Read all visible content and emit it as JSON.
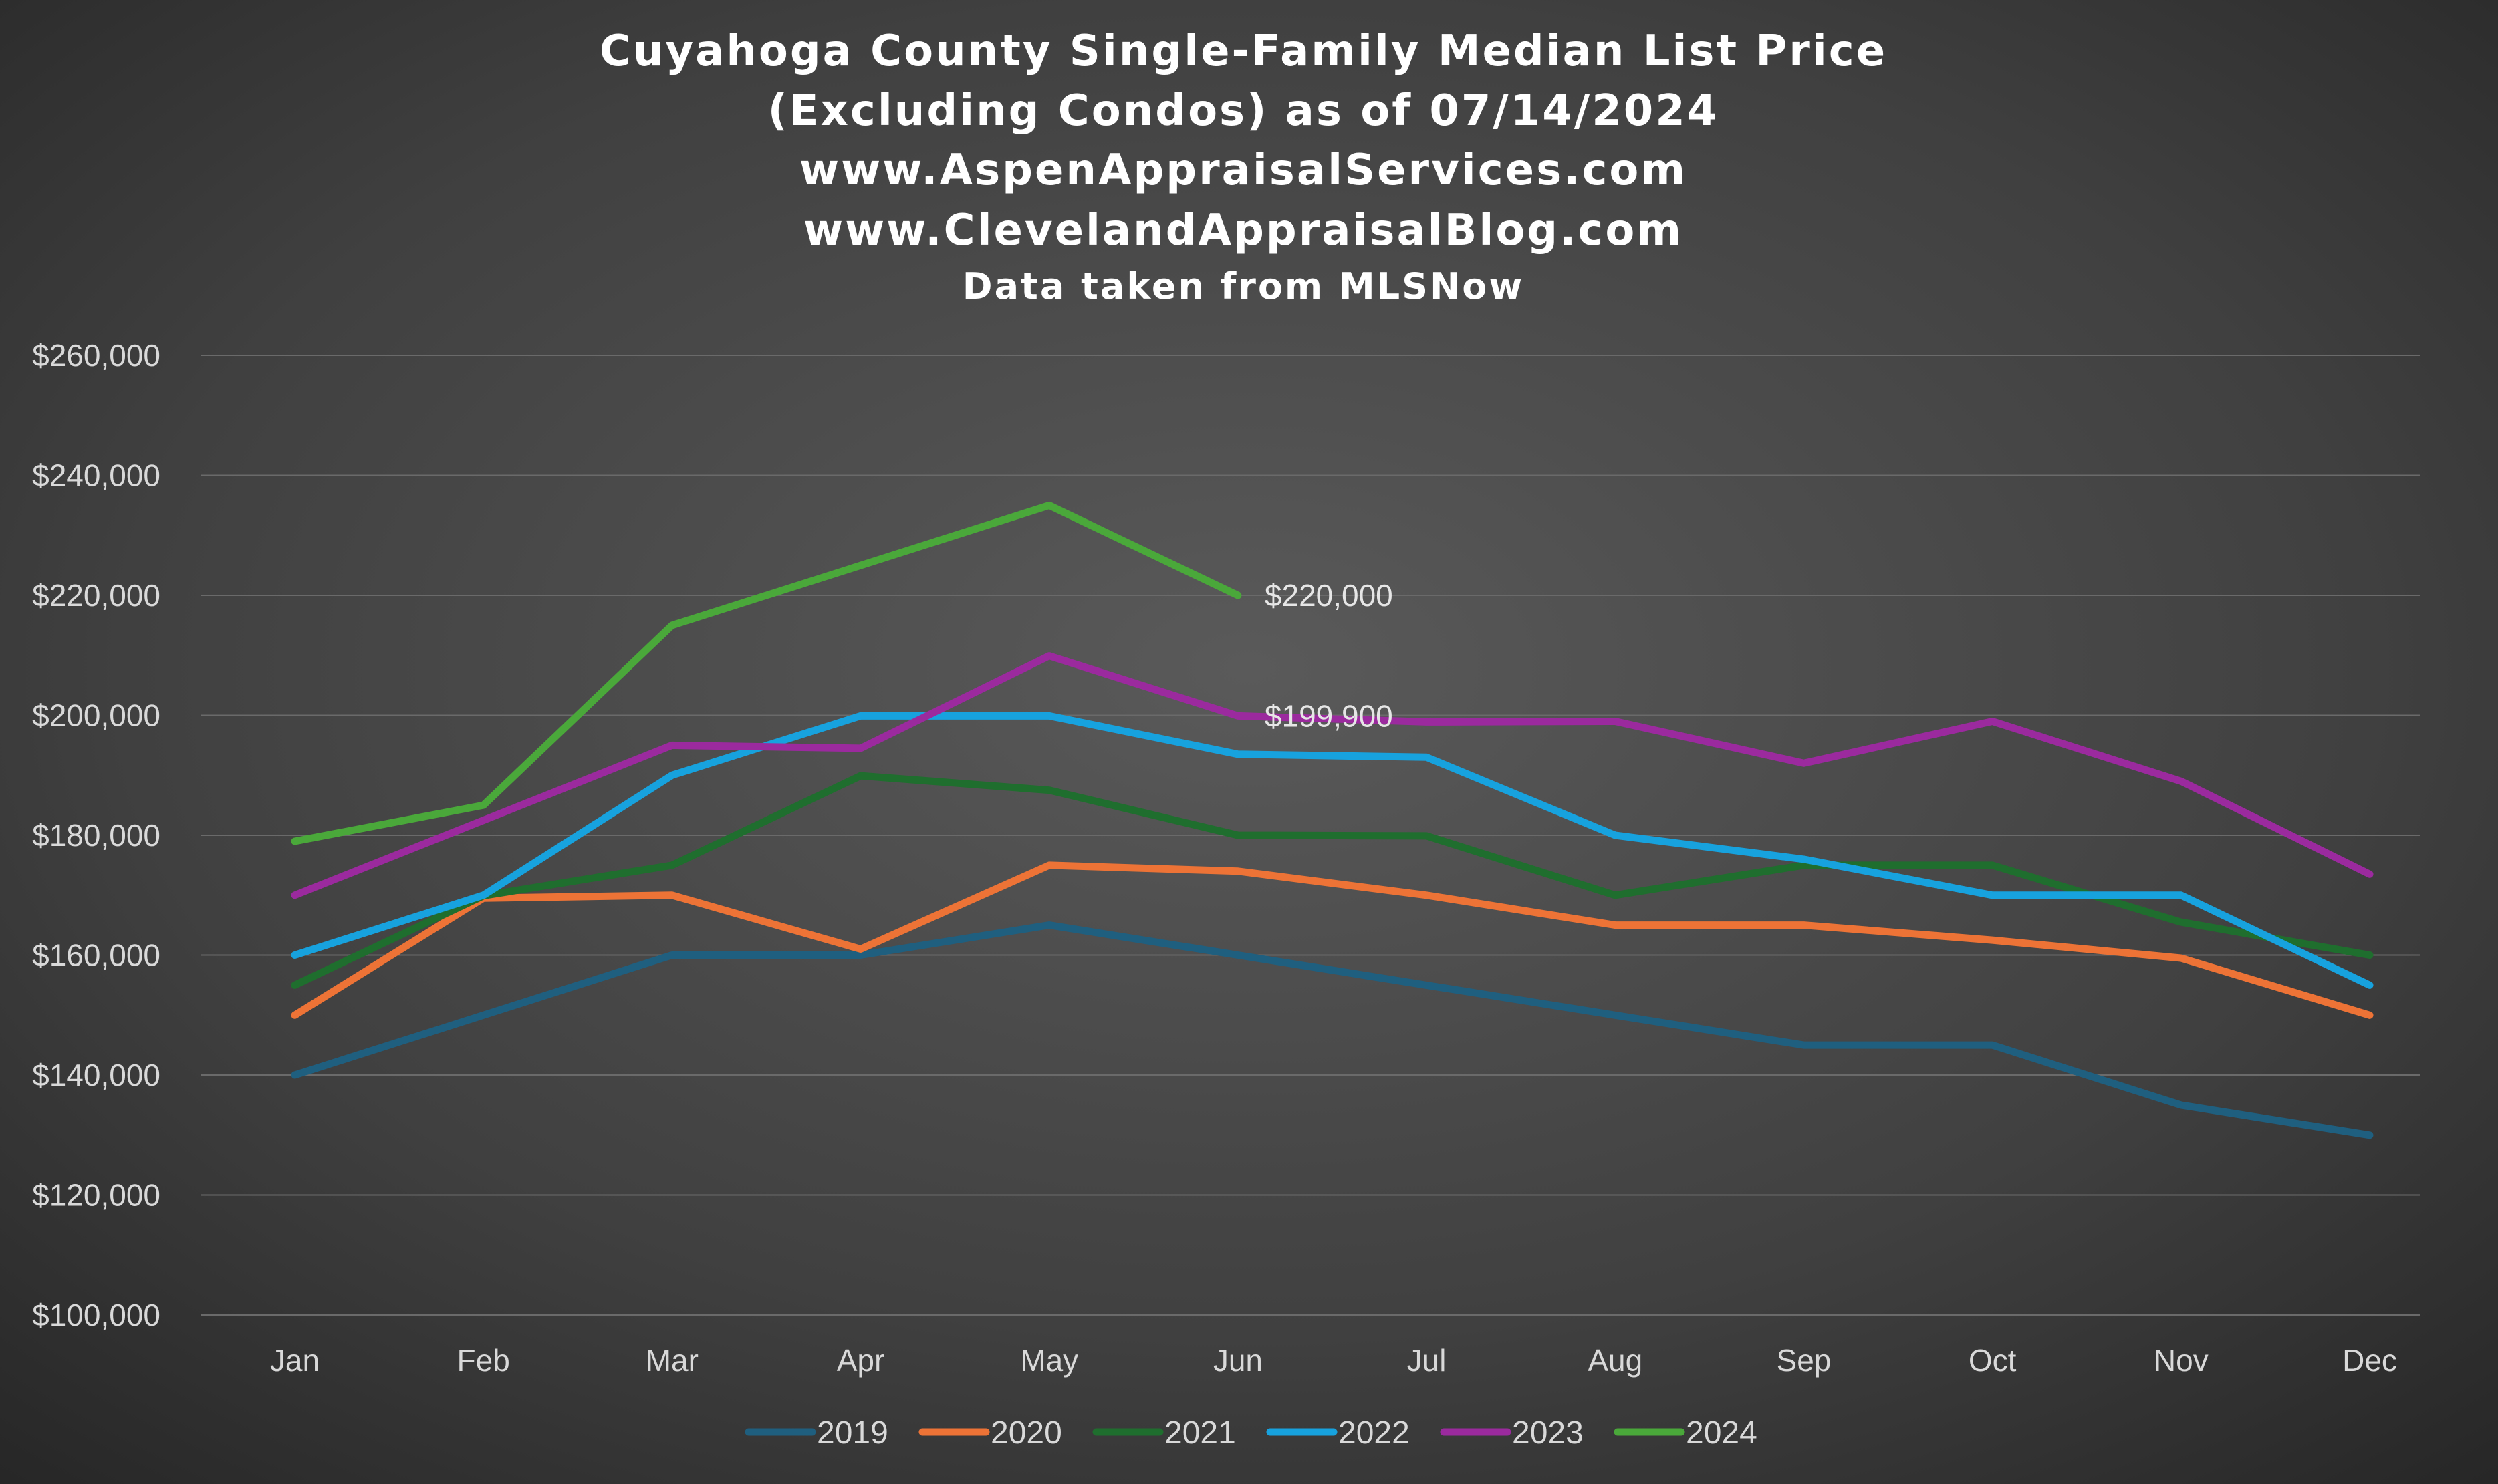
{
  "chart_data": {
    "type": "line",
    "title_lines": [
      "Cuyahoga County Single-Family Median List Price",
      "(Excluding Condos) as of 07/14/2024",
      "www.AspenAppraisalServices.com",
      "www.ClevelandAppraisalBlog.com",
      "Data taken from MLSNow"
    ],
    "xlabel": "",
    "ylabel": "",
    "categories": [
      "Jan",
      "Feb",
      "Mar",
      "Apr",
      "May",
      "Jun",
      "Jul",
      "Aug",
      "Sep",
      "Oct",
      "Nov",
      "Dec"
    ],
    "ylim": [
      100000,
      260000
    ],
    "y_ticks": [
      100000,
      120000,
      140000,
      160000,
      180000,
      200000,
      220000,
      240000,
      260000
    ],
    "y_tick_labels": [
      "$100,000",
      "$120,000",
      "$140,000",
      "$160,000",
      "$180,000",
      "$200,000",
      "$220,000",
      "$240,000",
      "$260,000"
    ],
    "grid": true,
    "legend_position": "bottom",
    "series": [
      {
        "name": "2019",
        "color": "#1f5f7f",
        "values": [
          140000,
          150000,
          160000,
          160000,
          165000,
          160000,
          155000,
          150000,
          145000,
          145000,
          135000,
          130000
        ]
      },
      {
        "name": "2020",
        "color": "#ed7336",
        "values": [
          150000,
          169500,
          170000,
          161000,
          175000,
          174000,
          170000,
          165000,
          165000,
          162500,
          159500,
          150000
        ]
      },
      {
        "name": "2021",
        "color": "#1f6e2e",
        "values": [
          155000,
          169900,
          175000,
          189900,
          187500,
          180000,
          179900,
          170000,
          175000,
          175000,
          165500,
          160000
        ]
      },
      {
        "name": "2022",
        "color": "#17a2de",
        "values": [
          160000,
          170000,
          190000,
          199900,
          199900,
          193500,
          193000,
          180000,
          176000,
          170000,
          170000,
          155000
        ]
      },
      {
        "name": "2023",
        "color": "#9b2a9e",
        "values": [
          170000,
          182500,
          195000,
          194500,
          209900,
          199900,
          198900,
          199000,
          192000,
          199000,
          189000,
          173500
        ]
      },
      {
        "name": "2024",
        "color": "#4aa83a",
        "values": [
          179000,
          185000,
          215000,
          225000,
          235000,
          220000,
          null,
          null,
          null,
          null,
          null,
          null
        ]
      }
    ],
    "annotations": [
      {
        "series": "2024",
        "category": "Jun",
        "text": "$220,000"
      },
      {
        "series": "2023",
        "category": "Jun",
        "text": "$199,900"
      }
    ]
  }
}
